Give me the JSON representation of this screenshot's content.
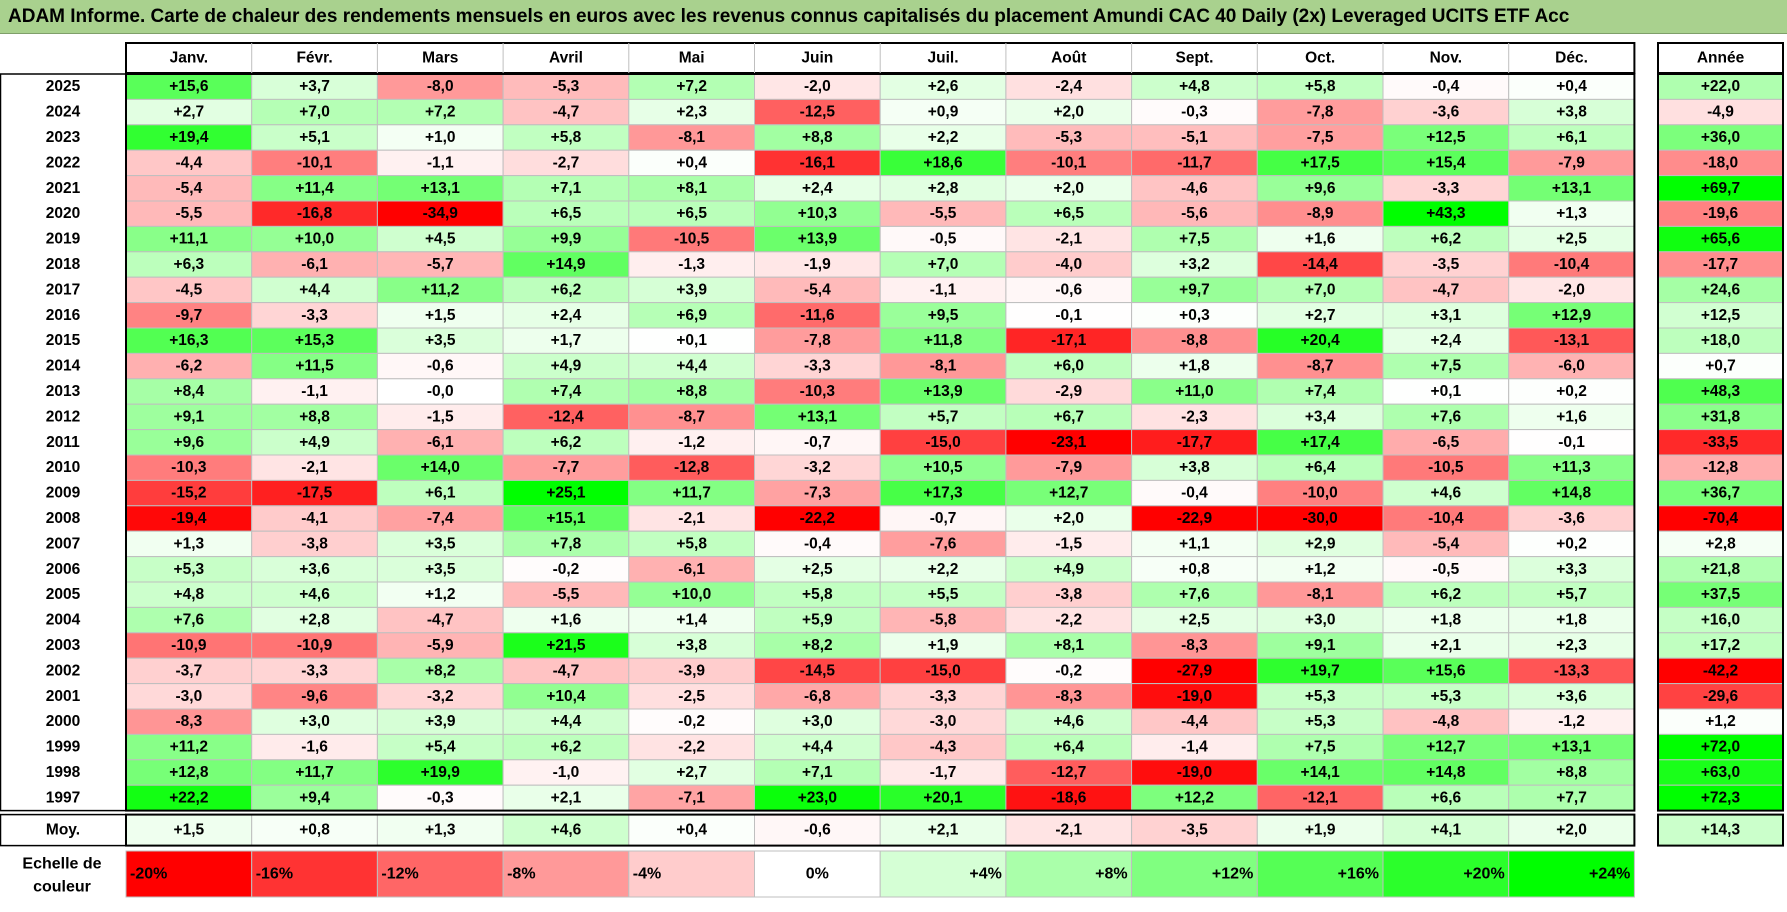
{
  "title": "ADAM Informe. Carte de chaleur des rendements mensuels en euros avec les revenus connus capitalisés du placement Amundi CAC 40 Daily (2x) Leveraged UCITS ETF Acc",
  "colors": {
    "header_bg": "#a9d18e",
    "neg_full": "#ff0000",
    "pos_full": "#00ff00",
    "neutral": "#ffffff",
    "grid": "#bfbfbf",
    "frame": "#000000"
  },
  "chart_data": {
    "type": "heatmap",
    "title": "ADAM Informe. Carte de chaleur des rendements mensuels en euros avec les revenus connus capitalisés du placement Amundi CAC 40 Daily (2x) Leveraged UCITS ETF Acc",
    "columns": [
      "Janv.",
      "Févr.",
      "Mars",
      "Avril",
      "Mai",
      "Juin",
      "Juil.",
      "Août",
      "Sept.",
      "Oct.",
      "Nov.",
      "Déc."
    ],
    "year_column_label": "Année",
    "rows": [
      {
        "year": "2025",
        "values": [
          "+15,6",
          "+3,7",
          "-8,0",
          "-5,3",
          "+7,2",
          "-2,0",
          "+2,6",
          "-2,4",
          "+4,8",
          "+5,8",
          "-0,4",
          "+0,4"
        ],
        "annual": "+22,0"
      },
      {
        "year": "2024",
        "values": [
          "+2,7",
          "+7,0",
          "+7,2",
          "-4,7",
          "+2,3",
          "-12,5",
          "+0,9",
          "+2,0",
          "-0,3",
          "-7,8",
          "-3,6",
          "+3,8"
        ],
        "annual": "-4,9"
      },
      {
        "year": "2023",
        "values": [
          "+19,4",
          "+5,1",
          "+1,0",
          "+5,8",
          "-8,1",
          "+8,8",
          "+2,2",
          "-5,3",
          "-5,1",
          "-7,5",
          "+12,5",
          "+6,1"
        ],
        "annual": "+36,0"
      },
      {
        "year": "2022",
        "values": [
          "-4,4",
          "-10,1",
          "-1,1",
          "-2,7",
          "+0,4",
          "-16,1",
          "+18,6",
          "-10,1",
          "-11,7",
          "+17,5",
          "+15,4",
          "-7,9"
        ],
        "annual": "-18,0"
      },
      {
        "year": "2021",
        "values": [
          "-5,4",
          "+11,4",
          "+13,1",
          "+7,1",
          "+8,1",
          "+2,4",
          "+2,8",
          "+2,0",
          "-4,6",
          "+9,6",
          "-3,3",
          "+13,1"
        ],
        "annual": "+69,7"
      },
      {
        "year": "2020",
        "values": [
          "-5,5",
          "-16,8",
          "-34,9",
          "+6,5",
          "+6,5",
          "+10,3",
          "-5,5",
          "+6,5",
          "-5,6",
          "-8,9",
          "+43,3",
          "+1,3"
        ],
        "annual": "-19,6"
      },
      {
        "year": "2019",
        "values": [
          "+11,1",
          "+10,0",
          "+4,5",
          "+9,9",
          "-10,5",
          "+13,9",
          "-0,5",
          "-2,1",
          "+7,5",
          "+1,6",
          "+6,2",
          "+2,5"
        ],
        "annual": "+65,6"
      },
      {
        "year": "2018",
        "values": [
          "+6,3",
          "-6,1",
          "-5,7",
          "+14,9",
          "-1,3",
          "-1,9",
          "+7,0",
          "-4,0",
          "+3,2",
          "-14,4",
          "-3,5",
          "-10,4"
        ],
        "annual": "-17,7"
      },
      {
        "year": "2017",
        "values": [
          "-4,5",
          "+4,4",
          "+11,2",
          "+6,2",
          "+3,9",
          "-5,4",
          "-1,1",
          "-0,6",
          "+9,7",
          "+7,0",
          "-4,7",
          "-2,0"
        ],
        "annual": "+24,6"
      },
      {
        "year": "2016",
        "values": [
          "-9,7",
          "-3,3",
          "+1,5",
          "+2,4",
          "+6,9",
          "-11,6",
          "+9,5",
          "-0,1",
          "+0,3",
          "+2,7",
          "+3,1",
          "+12,9"
        ],
        "annual": "+12,5"
      },
      {
        "year": "2015",
        "values": [
          "+16,3",
          "+15,3",
          "+3,5",
          "+1,7",
          "+0,1",
          "-7,8",
          "+11,8",
          "-17,1",
          "-8,8",
          "+20,4",
          "+2,4",
          "-13,1"
        ],
        "annual": "+18,0"
      },
      {
        "year": "2014",
        "values": [
          "-6,2",
          "+11,5",
          "-0,6",
          "+4,9",
          "+4,4",
          "-3,3",
          "-8,1",
          "+6,0",
          "+1,8",
          "-8,7",
          "+7,5",
          "-6,0"
        ],
        "annual": "+0,7"
      },
      {
        "year": "2013",
        "values": [
          "+8,4",
          "-1,1",
          "-0,0",
          "+7,4",
          "+8,8",
          "-10,3",
          "+13,9",
          "-2,9",
          "+11,0",
          "+7,4",
          "+0,1",
          "+0,2"
        ],
        "annual": "+48,3"
      },
      {
        "year": "2012",
        "values": [
          "+9,1",
          "+8,8",
          "-1,5",
          "-12,4",
          "-8,7",
          "+13,1",
          "+5,7",
          "+6,7",
          "-2,3",
          "+3,4",
          "+7,6",
          "+1,6"
        ],
        "annual": "+31,8"
      },
      {
        "year": "2011",
        "values": [
          "+9,6",
          "+4,9",
          "-6,1",
          "+6,2",
          "-1,2",
          "-0,7",
          "-15,0",
          "-23,1",
          "-17,7",
          "+17,4",
          "-6,5",
          "-0,1"
        ],
        "annual": "-33,5"
      },
      {
        "year": "2010",
        "values": [
          "-10,3",
          "-2,1",
          "+14,0",
          "-7,7",
          "-12,8",
          "-3,2",
          "+10,5",
          "-7,9",
          "+3,8",
          "+6,4",
          "-10,5",
          "+11,3"
        ],
        "annual": "-12,8"
      },
      {
        "year": "2009",
        "values": [
          "-15,2",
          "-17,5",
          "+6,1",
          "+25,1",
          "+11,7",
          "-7,3",
          "+17,3",
          "+12,7",
          "-0,4",
          "-10,0",
          "+4,6",
          "+14,8"
        ],
        "annual": "+36,7"
      },
      {
        "year": "2008",
        "values": [
          "-19,4",
          "-4,1",
          "-7,4",
          "+15,1",
          "-2,1",
          "-22,2",
          "-0,7",
          "+2,0",
          "-22,9",
          "-30,0",
          "-10,4",
          "-3,6"
        ],
        "annual": "-70,4"
      },
      {
        "year": "2007",
        "values": [
          "+1,3",
          "-3,8",
          "+3,5",
          "+7,8",
          "+5,8",
          "-0,4",
          "-7,6",
          "-1,5",
          "+1,1",
          "+2,9",
          "-5,4",
          "+0,2"
        ],
        "annual": "+2,8"
      },
      {
        "year": "2006",
        "values": [
          "+5,3",
          "+3,6",
          "+3,5",
          "-0,2",
          "-6,1",
          "+2,5",
          "+2,2",
          "+4,9",
          "+0,8",
          "+1,2",
          "-0,5",
          "+3,3"
        ],
        "annual": "+21,8"
      },
      {
        "year": "2005",
        "values": [
          "+4,8",
          "+4,6",
          "+1,2",
          "-5,5",
          "+10,0",
          "+5,8",
          "+5,5",
          "-3,8",
          "+7,6",
          "-8,1",
          "+6,2",
          "+5,7"
        ],
        "annual": "+37,5"
      },
      {
        "year": "2004",
        "values": [
          "+7,6",
          "+2,8",
          "-4,7",
          "+1,6",
          "+1,4",
          "+5,9",
          "-5,8",
          "-2,2",
          "+2,5",
          "+3,0",
          "+1,8",
          "+1,8"
        ],
        "annual": "+16,0"
      },
      {
        "year": "2003",
        "values": [
          "-10,9",
          "-10,9",
          "-5,9",
          "+21,5",
          "+3,8",
          "+8,2",
          "+1,9",
          "+8,1",
          "-8,3",
          "+9,1",
          "+2,1",
          "+2,3"
        ],
        "annual": "+17,2"
      },
      {
        "year": "2002",
        "values": [
          "-3,7",
          "-3,3",
          "+8,2",
          "-4,7",
          "-3,9",
          "-14,5",
          "-15,0",
          "-0,2",
          "-27,9",
          "+19,7",
          "+15,6",
          "-13,3"
        ],
        "annual": "-42,2"
      },
      {
        "year": "2001",
        "values": [
          "-3,0",
          "-9,6",
          "-3,2",
          "+10,4",
          "-2,5",
          "-6,8",
          "-3,3",
          "-8,3",
          "-19,0",
          "+5,3",
          "+5,3",
          "+3,6"
        ],
        "annual": "-29,6"
      },
      {
        "year": "2000",
        "values": [
          "-8,3",
          "+3,0",
          "+3,9",
          "+4,4",
          "-0,2",
          "+3,0",
          "-3,0",
          "+4,6",
          "-4,4",
          "+5,3",
          "-4,8",
          "-1,2"
        ],
        "annual": "+1,2"
      },
      {
        "year": "1999",
        "values": [
          "+11,2",
          "-1,6",
          "+5,4",
          "+6,2",
          "-2,2",
          "+4,4",
          "-4,3",
          "+6,4",
          "-1,4",
          "+7,5",
          "+12,7",
          "+13,1"
        ],
        "annual": "+72,0"
      },
      {
        "year": "1998",
        "values": [
          "+12,8",
          "+11,7",
          "+19,9",
          "-1,0",
          "+2,7",
          "+7,1",
          "-1,7",
          "-12,7",
          "-19,0",
          "+14,1",
          "+14,8",
          "+8,8"
        ],
        "annual": "+63,0"
      },
      {
        "year": "1997",
        "values": [
          "+22,2",
          "+9,4",
          "-0,3",
          "+2,1",
          "-7,1",
          "+23,0",
          "+20,1",
          "-18,6",
          "+12,2",
          "-12,1",
          "+6,6",
          "+7,7"
        ],
        "annual": "+72,3"
      }
    ],
    "average": {
      "label": "Moy.",
      "values": [
        "+1,5",
        "+0,8",
        "+1,3",
        "+4,6",
        "+0,4",
        "-0,6",
        "+2,1",
        "-2,1",
        "-3,5",
        "+1,9",
        "+4,1",
        "+2,0"
      ],
      "annual": "+14,3"
    },
    "scale": {
      "label_line1": "Echelle de",
      "label_line2": "couleur",
      "steps": [
        {
          "label": "-20%",
          "value": -20
        },
        {
          "label": "-16%",
          "value": -16
        },
        {
          "label": "-12%",
          "value": -12
        },
        {
          "label": "-8%",
          "value": -8
        },
        {
          "label": "-4%",
          "value": -4
        },
        {
          "label": "0%",
          "value": 0
        },
        {
          "label": "+4%",
          "value": 4
        },
        {
          "label": "+8%",
          "value": 8
        },
        {
          "label": "+12%",
          "value": 12
        },
        {
          "label": "+16%",
          "value": 16
        },
        {
          "label": "+20%",
          "value": 20
        },
        {
          "label": "+24%",
          "value": 24
        }
      ]
    },
    "monthly_color_range": [
      -20,
      24
    ],
    "annual_color_range": [
      -40,
      70
    ]
  }
}
